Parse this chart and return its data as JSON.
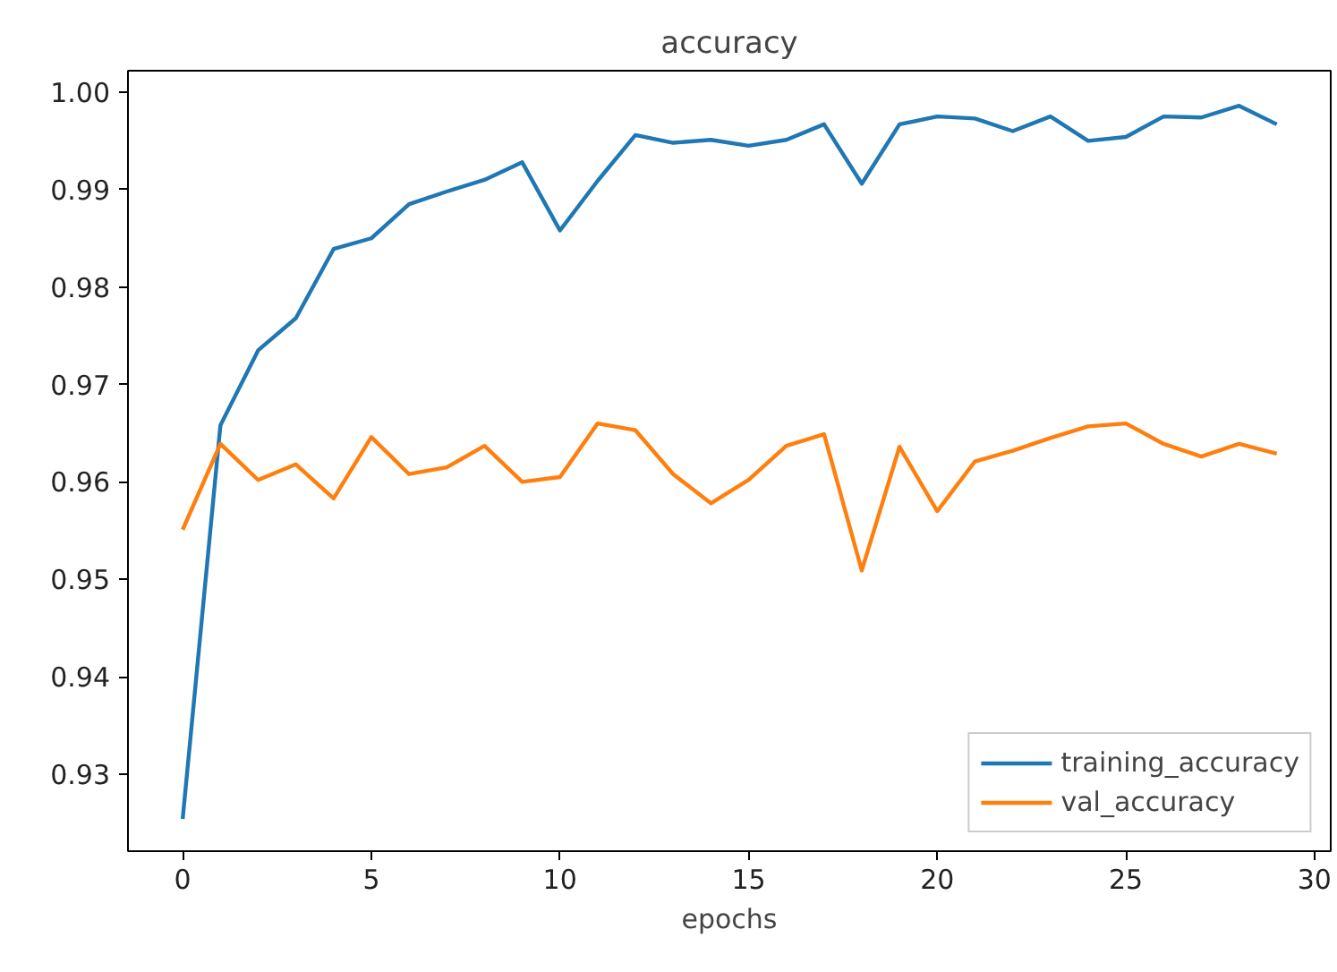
{
  "chart_data": {
    "type": "line",
    "title": "accuracy",
    "xlabel": "epochs",
    "x": [
      0,
      1,
      2,
      3,
      4,
      5,
      6,
      7,
      8,
      9,
      10,
      11,
      12,
      13,
      14,
      15,
      16,
      17,
      18,
      19,
      20,
      21,
      22,
      23,
      24,
      25,
      26,
      27,
      28,
      29
    ],
    "series": [
      {
        "name": "training_accuracy",
        "color": "#1f77b4",
        "values": [
          0.9254,
          0.9658,
          0.9735,
          0.9768,
          0.9839,
          0.985,
          0.9885,
          0.9898,
          0.991,
          0.9928,
          0.9858,
          0.9909,
          0.9956,
          0.9948,
          0.9951,
          0.9945,
          0.9951,
          0.9967,
          0.9906,
          0.9967,
          0.9975,
          0.9973,
          0.996,
          0.9975,
          0.995,
          0.9954,
          0.9975,
          0.9974,
          0.9986,
          0.9967
        ]
      },
      {
        "name": "val_accuracy",
        "color": "#ff7f0e",
        "values": [
          0.9551,
          0.9639,
          0.9602,
          0.9618,
          0.9583,
          0.9646,
          0.9608,
          0.9615,
          0.9637,
          0.96,
          0.9605,
          0.966,
          0.9653,
          0.9608,
          0.9578,
          0.9602,
          0.9637,
          0.9649,
          0.9509,
          0.9636,
          0.957,
          0.9621,
          0.9632,
          0.9645,
          0.9657,
          0.966,
          0.9639,
          0.9626,
          0.9639,
          0.9629
        ]
      }
    ],
    "xlim": [
      -1.45,
      30.43
    ],
    "ylim": [
      0.9221,
      1.0022
    ],
    "xticks": [
      0,
      5,
      10,
      15,
      20,
      25,
      30
    ],
    "yticks": [
      {
        "value": 0.93,
        "label": "0.93"
      },
      {
        "value": 0.94,
        "label": "0.94"
      },
      {
        "value": 0.95,
        "label": "0.95"
      },
      {
        "value": 0.96,
        "label": "0.96"
      },
      {
        "value": 0.97,
        "label": "0.97"
      },
      {
        "value": 0.98,
        "label": "0.98"
      },
      {
        "value": 0.99,
        "label": "0.99"
      },
      {
        "value": 1.0,
        "label": "1.00"
      }
    ],
    "grid": false,
    "legend": "bottom right",
    "line_style": "solid",
    "marker": "none"
  }
}
